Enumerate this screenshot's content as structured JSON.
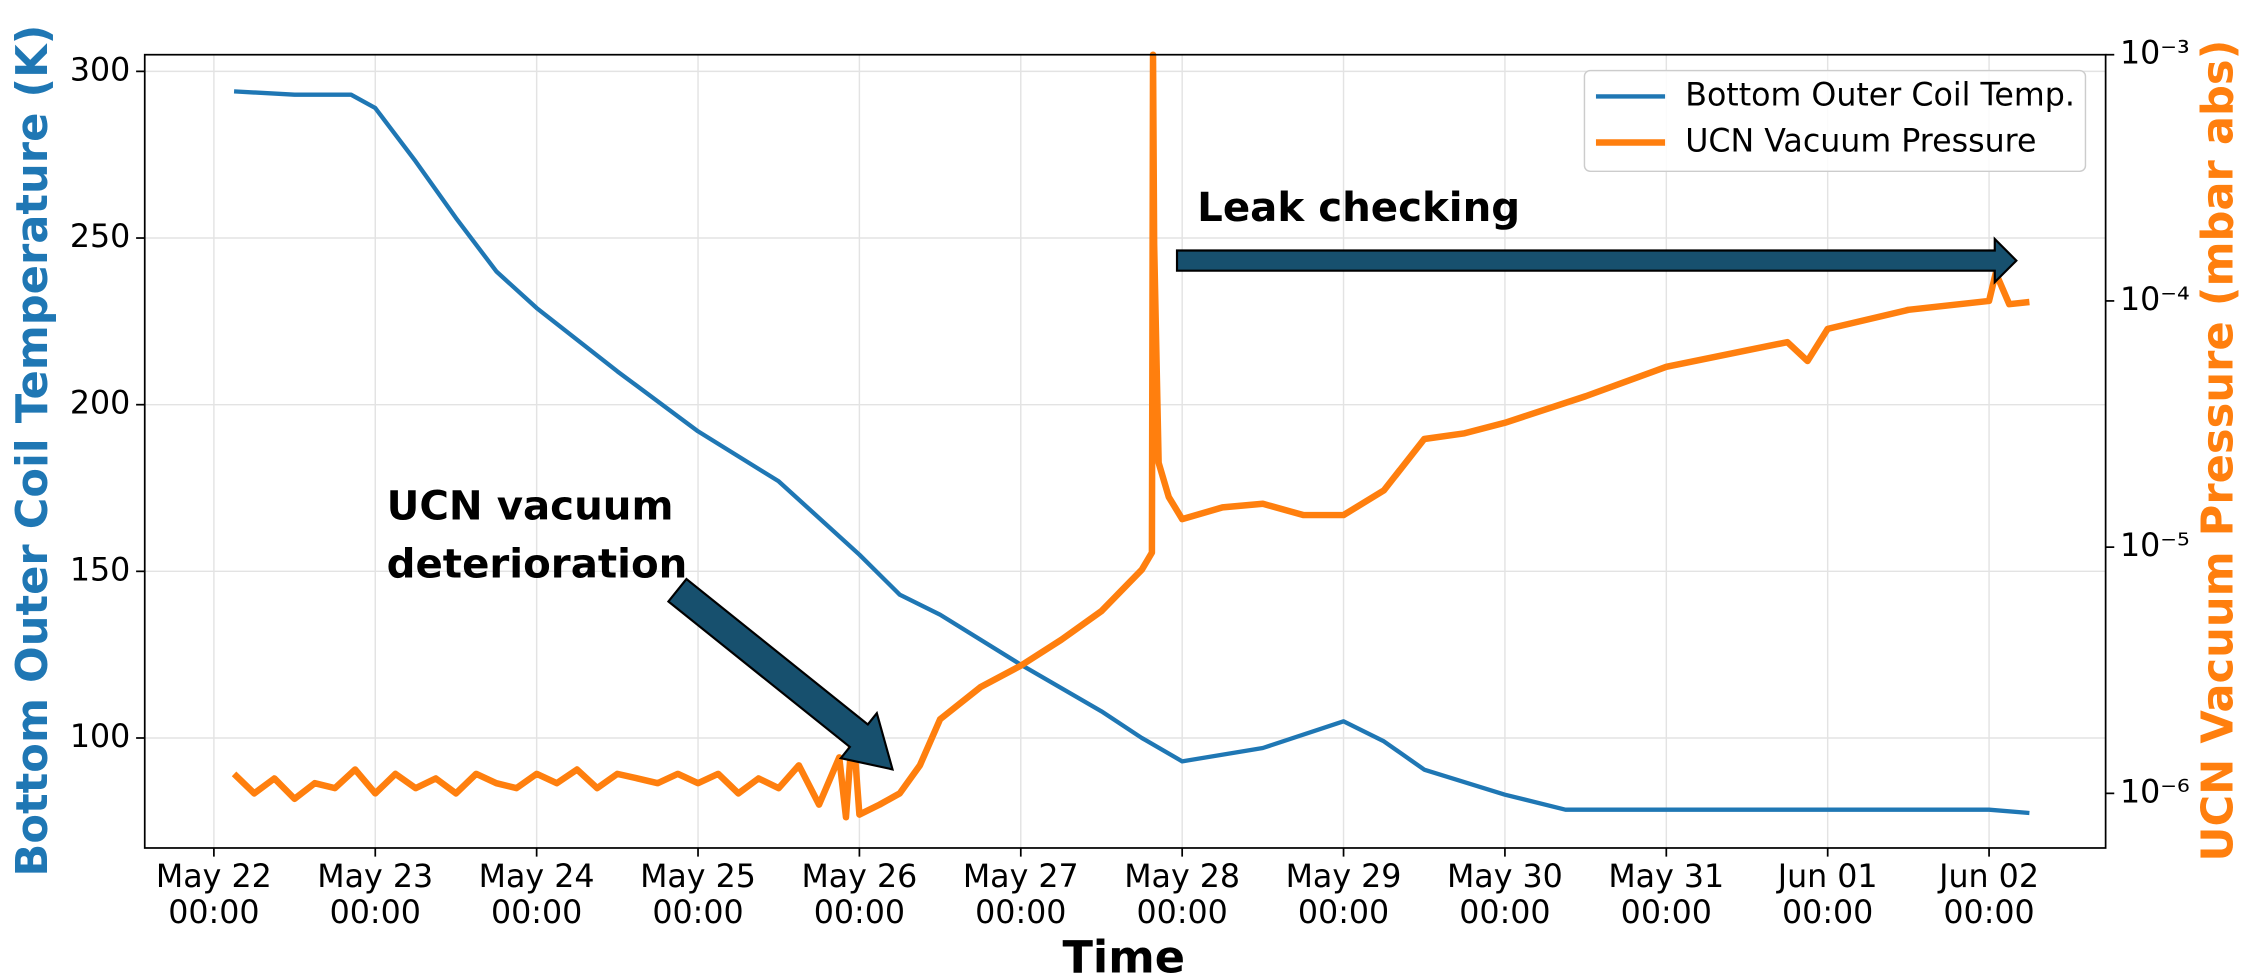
{
  "chart_data": {
    "type": "line",
    "xlabel": "Time",
    "ylabel": "Bottom Outer Coil Temperature (K)",
    "y2label": "UCN Vacuum Pressure (mbar abs)",
    "xlim": [
      "05-21 13:43",
      "06-02 17:20"
    ],
    "xticks": [
      {
        "value": "05-22 00:00",
        "label": "May 22 00:00"
      },
      {
        "value": "05-23 00:00",
        "label": "May 23 00:00"
      },
      {
        "value": "05-24 00:00",
        "label": "May 24 00:00"
      },
      {
        "value": "05-25 00:00",
        "label": "May 25 00:00"
      },
      {
        "value": "05-26 00:00",
        "label": "May 26 00:00"
      },
      {
        "value": "05-27 00:00",
        "label": "May 27 00:00"
      },
      {
        "value": "05-28 00:00",
        "label": "May 28 00:00"
      },
      {
        "value": "05-29 00:00",
        "label": "May 29 00:00"
      },
      {
        "value": "05-30 00:00",
        "label": "May 30 00:00"
      },
      {
        "value": "05-31 00:00",
        "label": "May 31 00:00"
      },
      {
        "value": "06-01 00:00",
        "label": "Jun 01 00:00"
      },
      {
        "value": "06-02 00:00",
        "label": "Jun 02 00:00"
      }
    ],
    "ylim": [
      67,
      305
    ],
    "yticks": [
      100,
      150,
      200,
      250,
      300
    ],
    "y2lim": [
      6e-07,
      0.001
    ],
    "y2scale": "log",
    "y2ticks": [
      {
        "value": 0.001,
        "label": "10⁻³"
      },
      {
        "value": 0.0001,
        "label": "10⁻⁴"
      },
      {
        "value": 1e-05,
        "label": "10⁻⁵"
      },
      {
        "value": 1e-06,
        "label": "10⁻⁶"
      }
    ],
    "grid": true,
    "legend": "upper right",
    "annotations": [
      "Leak checking",
      "UCN vacuum deterioration"
    ],
    "series": [
      {
        "name": "Bottom Outer Coil Temp.",
        "color": "#1f77b4",
        "axis": "y",
        "x": [
          "05-22 03:00",
          "05-22 12:00",
          "05-22 20:24",
          "05-23 00:00",
          "05-23 06:00",
          "05-23 12:00",
          "05-23 18:00",
          "05-24 00:00",
          "05-24 12:00",
          "05-25 00:00",
          "05-25 12:00",
          "05-26 00:00",
          "05-26 06:00",
          "05-26 12:00",
          "05-27 00:00",
          "05-27 12:00",
          "05-27 18:00",
          "05-28 00:00",
          "05-28 12:00",
          "05-29 00:00",
          "05-29 06:00",
          "05-29 12:00",
          "05-30 00:00",
          "05-30 09:00",
          "05-31 00:00",
          "06-01 00:00",
          "06-02 00:00",
          "06-02 06:00"
        ],
        "values": [
          294,
          293,
          293,
          289,
          273,
          256,
          240,
          229,
          210,
          192,
          177,
          155,
          143,
          137,
          122,
          108,
          100,
          93,
          97,
          105,
          99,
          90.5,
          83,
          78.5,
          78.5,
          78.5,
          78.5,
          77.5
        ]
      },
      {
        "name": "UCN Vacuum Pressure",
        "color": "#ff7f0e",
        "axis": "y2",
        "x": [
          "05-22 03:00",
          "05-22 06:00",
          "05-22 09:00",
          "05-22 12:00",
          "05-22 15:00",
          "05-22 18:00",
          "05-22 21:00",
          "05-23 00:00",
          "05-23 03:00",
          "05-23 06:00",
          "05-23 09:00",
          "05-23 12:00",
          "05-23 15:00",
          "05-23 18:00",
          "05-23 21:00",
          "05-24 00:00",
          "05-24 03:00",
          "05-24 06:00",
          "05-24 09:00",
          "05-24 12:00",
          "05-24 15:00",
          "05-24 18:00",
          "05-24 21:00",
          "05-25 00:00",
          "05-25 03:00",
          "05-25 06:00",
          "05-25 09:00",
          "05-25 12:00",
          "05-25 15:00",
          "05-25 18:00",
          "05-25 21:00",
          "05-25 22:00",
          "05-25 23:00",
          "05-26 00:00",
          "05-26 03:00",
          "05-26 06:00",
          "05-26 09:00",
          "05-26 12:00",
          "05-26 18:00",
          "05-27 00:00",
          "05-27 06:00",
          "05-27 12:00",
          "05-27 18:00",
          "05-27 19:30",
          "05-27 19:40",
          "05-27 19:50",
          "05-27 20:30",
          "05-27 22:00",
          "05-28 00:00",
          "05-28 06:00",
          "05-28 12:00",
          "05-28 18:00",
          "05-29 00:00",
          "05-29 06:00",
          "05-29 12:00",
          "05-29 18:00",
          "05-30 00:00",
          "05-30 12:00",
          "05-31 00:00",
          "05-31 12:00",
          "05-31 18:00",
          "05-31 21:00",
          "06-01 00:00",
          "06-01 12:00",
          "06-02 00:00",
          "06-02 01:00",
          "06-02 03:00",
          "06-02 06:00"
        ],
        "values": [
          1.2e-06,
          1e-06,
          1.15e-06,
          9.5e-07,
          1.1e-06,
          1.05e-06,
          1.25e-06,
          1e-06,
          1.2e-06,
          1.05e-06,
          1.15e-06,
          1e-06,
          1.2e-06,
          1.1e-06,
          1.05e-06,
          1.2e-06,
          1.1e-06,
          1.25e-06,
          1.05e-06,
          1.2e-06,
          1.15e-06,
          1.1e-06,
          1.2e-06,
          1.1e-06,
          1.2e-06,
          1e-06,
          1.15e-06,
          1.05e-06,
          1.3e-06,
          9e-07,
          1.4e-06,
          8e-07,
          1.9e-06,
          8.2e-07,
          9e-07,
          1e-06,
          1.3e-06,
          2e-06,
          2.7e-06,
          3.3e-06,
          4.2e-06,
          5.5e-06,
          8.1e-06,
          9.5e-06,
          0.001,
          0.00017,
          2.2e-05,
          1.6e-05,
          1.3e-05,
          1.45e-05,
          1.5e-05,
          1.35e-05,
          1.35e-05,
          1.7e-05,
          2.75e-05,
          2.9e-05,
          3.2e-05,
          4.1e-05,
          5.4e-05,
          6.3e-05,
          6.8e-05,
          5.7e-05,
          7.7e-05,
          9.2e-05,
          0.0001,
          0.00013,
          9.7e-05,
          9.9e-05
        ]
      }
    ]
  }
}
